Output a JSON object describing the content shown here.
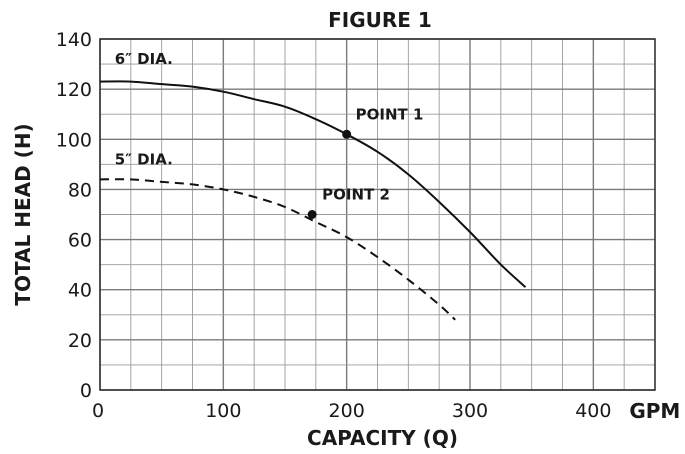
{
  "chart_data": {
    "type": "line",
    "title": "FIGURE 1",
    "xlabel": "CAPACITY (Q)",
    "ylabel": "TOTAL HEAD (H)",
    "x_unit": "GPM",
    "xlim": [
      0,
      450
    ],
    "ylim": [
      0,
      140
    ],
    "x_ticks": [
      0,
      100,
      200,
      300,
      400
    ],
    "y_ticks": [
      0,
      20,
      40,
      60,
      80,
      100,
      120,
      140
    ],
    "grid": true,
    "series": [
      {
        "name": "6″ DIA.",
        "line_style": "solid",
        "x": [
          0,
          25,
          50,
          75,
          100,
          125,
          150,
          175,
          200,
          225,
          250,
          275,
          300,
          325,
          345
        ],
        "y": [
          123,
          123,
          122,
          121,
          119,
          116,
          113,
          108,
          102,
          95,
          86,
          75,
          63,
          50,
          41
        ]
      },
      {
        "name": "5″ DIA.",
        "line_style": "dashed",
        "x": [
          0,
          25,
          50,
          75,
          100,
          125,
          150,
          175,
          200,
          225,
          250,
          275,
          288
        ],
        "y": [
          84,
          84,
          83,
          82,
          80,
          77,
          73,
          67,
          61,
          53,
          44,
          34,
          28
        ]
      }
    ],
    "points": [
      {
        "label": "POINT 1",
        "x": 200,
        "y": 102
      },
      {
        "label": "POINT 2",
        "x": 172,
        "y": 70
      }
    ]
  }
}
